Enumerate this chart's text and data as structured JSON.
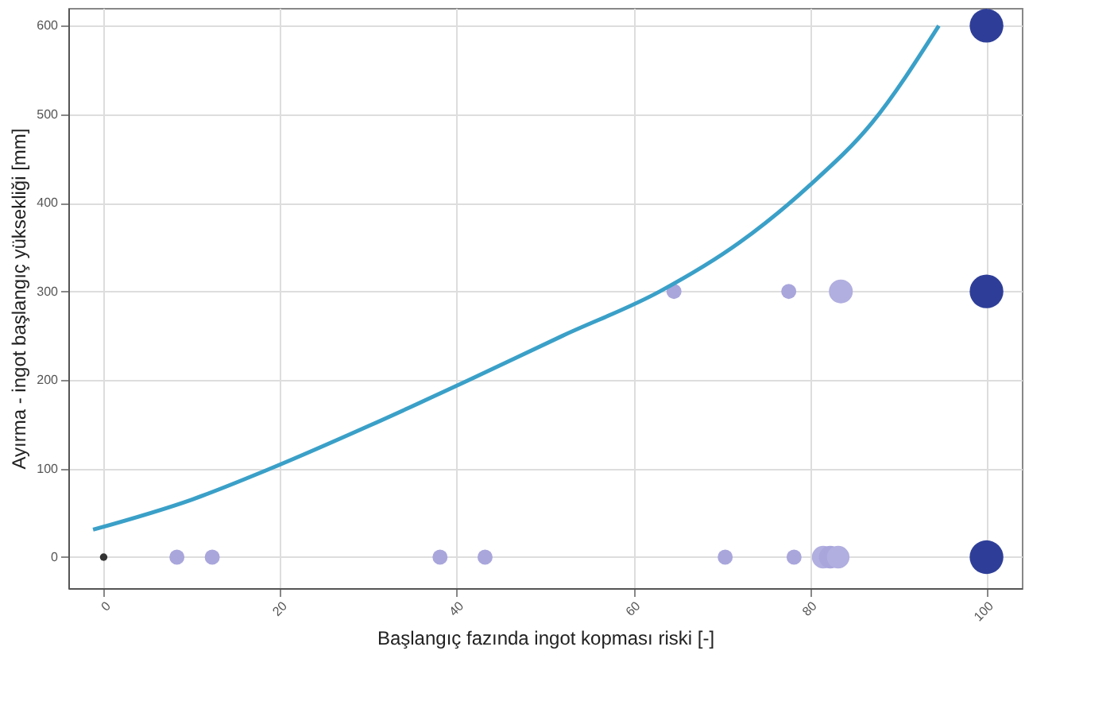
{
  "chart_data": {
    "type": "bubble",
    "xlabel": "Başlangıç fazında ingot kopması riski [-]",
    "ylabel": "Ayırma - ingot başlangıç yüksekliği [mm]",
    "xlim": [
      -4,
      104
    ],
    "xticks": [
      0,
      20,
      40,
      60,
      80,
      100
    ],
    "ylim": [
      -35,
      620
    ],
    "yticks": [
      0,
      100,
      200,
      300,
      400,
      500,
      600
    ],
    "grid": true,
    "series": [
      {
        "x": [
          0,
          8.3,
          12.3,
          38.1,
          43.2,
          70.4,
          78.2,
          81.5,
          82.3,
          83.2,
          100,
          64.6,
          77.6,
          83.5,
          100,
          100
        ],
        "values": [
          0,
          0,
          0,
          0,
          0,
          0,
          0,
          0,
          0,
          0,
          0,
          300,
          300,
          300,
          300,
          600
        ],
        "sizes": [
          0.05,
          0.2,
          0.2,
          0.2,
          0.2,
          0.2,
          0.2,
          0.45,
          0.45,
          0.45,
          1,
          0.2,
          0.2,
          0.5,
          1,
          1
        ],
        "colors": [
          "#333333",
          "#a9a6dc",
          "#a9a6dc",
          "#a9a6dc",
          "#a9a6dc",
          "#a9a6dc",
          "#a9a6dc",
          "#b1aee0",
          "#a9a6dc",
          "#b1aee0",
          "#2e3e98",
          "#a9a6dc",
          "#a9a6dc",
          "#b1aee0",
          "#2e3e98",
          "#2e3e98"
        ]
      },
      {
        "type": "line",
        "color": "#3aa0c8",
        "x": [
          94.6,
          87,
          80,
          72,
          63,
          52,
          41.4,
          30,
          18.9,
          10,
          -1.2
        ],
        "values": [
          600,
          490,
          420,
          355,
          300,
          250,
          200,
          148,
          100,
          65,
          31
        ]
      }
    ]
  }
}
